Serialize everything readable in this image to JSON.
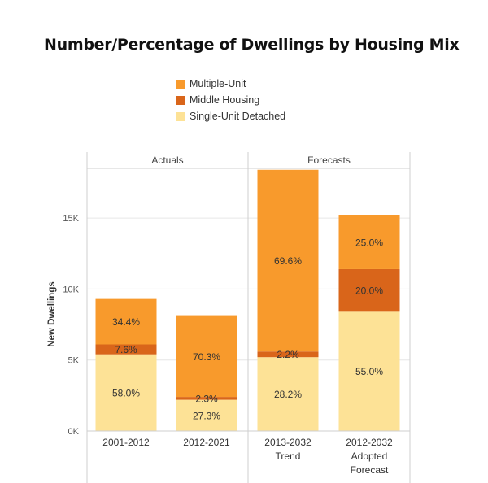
{
  "chart_data": {
    "type": "bar",
    "stacked": true,
    "title": "Number/Percentage of Dwellings by Housing Mix",
    "ylabel": "New Dwellings",
    "ylim": [
      0,
      18500
    ],
    "yticks": [
      0,
      5000,
      10000,
      15000
    ],
    "ytick_labels": [
      "0K",
      "5K",
      "10K",
      "15K"
    ],
    "panels": [
      {
        "label": "Actuals",
        "categories": [
          0,
          1
        ]
      },
      {
        "label": "Forecasts",
        "categories": [
          2,
          3
        ]
      }
    ],
    "categories": [
      "2001-2012",
      "2012-2021",
      "2013-2032 Trend",
      "2012-2032 Adopted Forecast"
    ],
    "category_lines": [
      [
        "2001-2012"
      ],
      [
        "2012-2021"
      ],
      [
        "2013-2032",
        "Trend"
      ],
      [
        "2012-2032",
        "Adopted",
        "Forecast"
      ]
    ],
    "legend_position": "top",
    "series": [
      {
        "name": "Single-Unit Detached",
        "color": "#fde296",
        "values": [
          5400,
          2200,
          5200,
          8400
        ],
        "labels": [
          "58.0%",
          "27.3%",
          "28.2%",
          "55.0%"
        ]
      },
      {
        "name": "Middle Housing",
        "color": "#d9651a",
        "values": [
          700,
          200,
          400,
          3000
        ],
        "labels": [
          "7.6%",
          "2.3%",
          "2.2%",
          "20.0%"
        ]
      },
      {
        "name": "Multiple-Unit",
        "color": "#f89a2c",
        "values": [
          3200,
          5700,
          12800,
          3800
        ],
        "labels": [
          "34.4%",
          "70.3%",
          "69.6%",
          "25.0%"
        ]
      }
    ],
    "legend_order": [
      "Multiple-Unit",
      "Middle Housing",
      "Single-Unit Detached"
    ]
  }
}
